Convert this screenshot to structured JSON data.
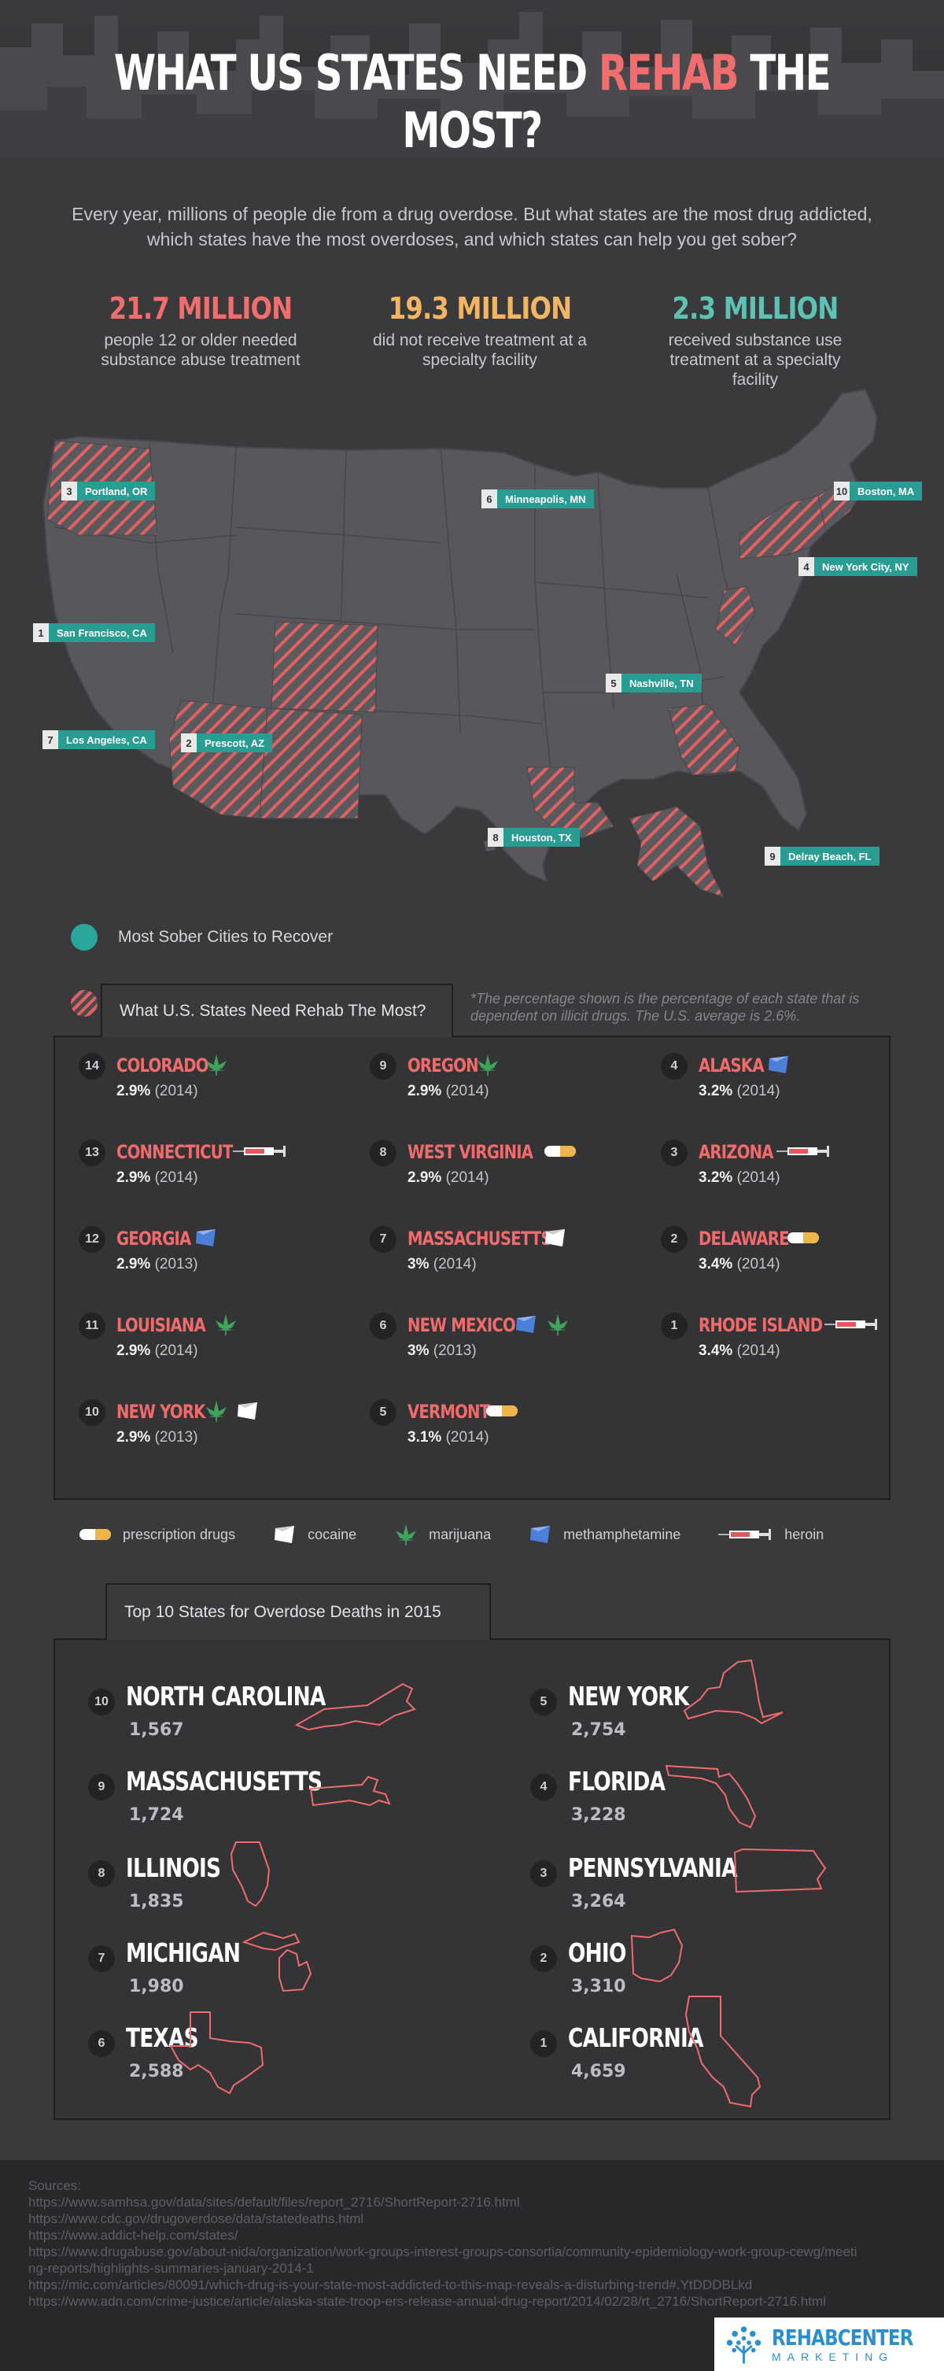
{
  "header": {
    "title_pre": "WHAT US STATES NEED ",
    "title_highlight": "REHAB",
    "title_post": " THE MOST?"
  },
  "intro": "Every year, millions of people die from a drug overdose. But what states are the most drug addicted, which states have the most overdoses, and which states can help you get sober?",
  "stats": [
    {
      "value": "21.7 MILLION",
      "label": "people 12 or older needed substance abuse treatment",
      "color": "#f26d6d"
    },
    {
      "value": "19.3 MILLION",
      "label": "did not receive treatment at a specialty facility",
      "color": "#f2b562"
    },
    {
      "value": "2.3 MILLION",
      "label": "received substance use treatment at a specialty facility",
      "color": "#5cc2b4"
    }
  ],
  "cities": [
    {
      "rank": "3",
      "name": "Portland, OR"
    },
    {
      "rank": "6",
      "name": "Minneapolis, MN"
    },
    {
      "rank": "10",
      "name": "Boston, MA"
    },
    {
      "rank": "4",
      "name": "New York City, NY"
    },
    {
      "rank": "1",
      "name": "San Francisco, CA"
    },
    {
      "rank": "5",
      "name": "Nashville, TN"
    },
    {
      "rank": "7",
      "name": "Los Angeles, CA"
    },
    {
      "rank": "2",
      "name": "Prescott, AZ"
    },
    {
      "rank": "8",
      "name": "Houston, TX"
    },
    {
      "rank": "9",
      "name": "Delray Beach, FL"
    }
  ],
  "legend": {
    "sober": "Most Sober Cities to Recover",
    "rehab_tab": "What U.S. States Need Rehab The Most?",
    "note": "*The percentage shown is the percentage of each state that is dependent on illicit drugs. The U.S. average is 2.6%."
  },
  "rehab_states": [
    {
      "rank": "14",
      "name": "COLORADO",
      "pct": "2.9%",
      "year": "(2014)",
      "icons": [
        "marijuana-icon"
      ]
    },
    {
      "rank": "13",
      "name": "CONNECTICUT",
      "pct": "2.9%",
      "year": "(2014)",
      "icons": [
        "heroin-icon"
      ]
    },
    {
      "rank": "12",
      "name": "GEORGIA",
      "pct": "2.9%",
      "year": "(2013)",
      "icons": [
        "methamphetamine-icon"
      ]
    },
    {
      "rank": "11",
      "name": "LOUISIANA",
      "pct": "2.9%",
      "year": "(2014)",
      "icons": [
        "marijuana-icon"
      ]
    },
    {
      "rank": "10",
      "name": "NEW YORK",
      "pct": "2.9%",
      "year": "(2013)",
      "icons": [
        "marijuana-icon",
        "cocaine-icon"
      ]
    },
    {
      "rank": "9",
      "name": "OREGON",
      "pct": "2.9%",
      "year": "(2014)",
      "icons": [
        "marijuana-icon"
      ]
    },
    {
      "rank": "8",
      "name": "WEST VIRGINIA",
      "pct": "2.9%",
      "year": "(2014)",
      "icons": [
        "prescription-icon"
      ]
    },
    {
      "rank": "7",
      "name": "MASSACHUSETTS",
      "pct": "3%",
      "year": "(2014)",
      "icons": [
        "cocaine-icon"
      ]
    },
    {
      "rank": "6",
      "name": "NEW MEXICO",
      "pct": "3%",
      "year": "(2013)",
      "icons": [
        "methamphetamine-icon",
        "marijuana-icon"
      ]
    },
    {
      "rank": "5",
      "name": "VERMONT",
      "pct": "3.1%",
      "year": "(2014)",
      "icons": [
        "prescription-icon"
      ]
    },
    {
      "rank": "4",
      "name": "ALASKA",
      "pct": "3.2%",
      "year": "(2014)",
      "icons": [
        "methamphetamine-icon"
      ]
    },
    {
      "rank": "3",
      "name": "ARIZONA",
      "pct": "3.2%",
      "year": "(2014)",
      "icons": [
        "heroin-icon"
      ]
    },
    {
      "rank": "2",
      "name": "DELAWARE",
      "pct": "3.4%",
      "year": "(2014)",
      "icons": [
        "prescription-icon"
      ]
    },
    {
      "rank": "1",
      "name": "RHODE ISLAND",
      "pct": "3.4%",
      "year": "(2014)",
      "icons": [
        "heroin-icon"
      ]
    }
  ],
  "drug_legend": [
    "prescription drugs",
    "cocaine",
    "marijuana",
    "methamphetamine",
    "heroin"
  ],
  "overdose_title": "Top 10 States for Overdose Deaths in 2015",
  "overdose": [
    {
      "rank": "10",
      "name": "NORTH CAROLINA",
      "count": "1,567",
      "shape": "north-carolina-outline-icon"
    },
    {
      "rank": "9",
      "name": "MASSACHUSETTS",
      "count": "1,724",
      "shape": "massachusetts-outline-icon"
    },
    {
      "rank": "8",
      "name": "ILLINOIS",
      "count": "1,835",
      "shape": "illinois-outline-icon"
    },
    {
      "rank": "7",
      "name": "MICHIGAN",
      "count": "1,980",
      "shape": "michigan-outline-icon"
    },
    {
      "rank": "6",
      "name": "TEXAS",
      "count": "2,588",
      "shape": "texas-outline-icon"
    },
    {
      "rank": "5",
      "name": "NEW YORK",
      "count": "2,754",
      "shape": "new-york-outline-icon"
    },
    {
      "rank": "4",
      "name": "FLORIDA",
      "count": "3,228",
      "shape": "florida-outline-icon"
    },
    {
      "rank": "3",
      "name": "PENNSYLVANIA",
      "count": "3,264",
      "shape": "pennsylvania-outline-icon"
    },
    {
      "rank": "2",
      "name": "OHIO",
      "count": "3,310",
      "shape": "ohio-outline-icon"
    },
    {
      "rank": "1",
      "name": "CALIFORNIA",
      "count": "4,659",
      "shape": "california-outline-icon"
    }
  ],
  "footer": {
    "sources_label": "Sources:",
    "sources": [
      "https://www.samhsa.gov/data/sites/default/files/report_2716/ShortReport-2716.html",
      "https://www.cdc.gov/drugoverdose/data/statedeaths.html",
      "https://www.addict-help.com/states/",
      "https://www.drugabuse.gov/about-nida/organization/work-groups-interest-groups-consortia/community-epidemiology-work-group-cewg/meeting-reports/highlights-summaries-january-2014-1",
      "https://mic.com/articles/80091/which-drug-is-your-state-most-addicted-to-this-map-reveals-a-disturbing-trend#.YtDDDBLkd",
      "https://www.adn.com/crime-justice/article/alaska-state-troop-ers-release-annual-drug-report/2014/02/28/rt_2716/ShortReport-2716.html"
    ],
    "logo_line1": "REHABCENTER",
    "logo_line2": "MARKETING"
  },
  "colors": {
    "red": "#f26d6d",
    "orange": "#f2b562",
    "teal": "#5cc2b4",
    "city_teal": "#2a9d93"
  }
}
